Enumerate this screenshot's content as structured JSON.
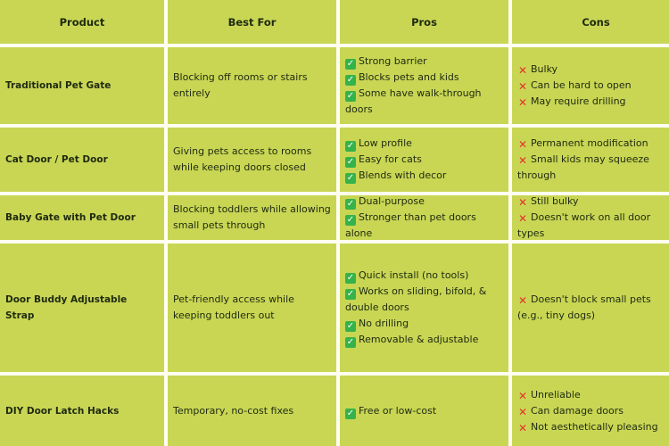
{
  "columns": [
    "Product",
    "Best For",
    "Pros",
    "Cons"
  ],
  "icons": {
    "pro": "check-mark-icon",
    "con": "cross-mark-icon"
  },
  "colors": {
    "cell_bg": "#c9d654",
    "check": "#36b24a",
    "cross": "#e0342a"
  },
  "rows": [
    {
      "product": "Traditional Pet Gate",
      "best_for": "Blocking off rooms or stairs entirely",
      "pros": [
        "Strong barrier",
        "Blocks pets and kids",
        "Some have walk-through doors"
      ],
      "cons": [
        "Bulky",
        "Can be hard to open",
        "May require drilling"
      ]
    },
    {
      "product": "Cat Door / Pet Door",
      "best_for": "Giving pets access to rooms while keeping doors closed",
      "pros": [
        "Low profile",
        "Easy for cats",
        "Blends with decor"
      ],
      "cons": [
        "Permanent modification",
        "Small kids may squeeze through"
      ]
    },
    {
      "product": "Baby Gate with Pet Door",
      "best_for": "Blocking toddlers while allowing small pets through",
      "pros": [
        "Dual-purpose",
        "Stronger than pet doors alone"
      ],
      "cons": [
        "Still bulky",
        "Doesn't work on all door types"
      ]
    },
    {
      "product": "Door Buddy Adjustable Strap",
      "best_for": "Pet-friendly access while keeping toddlers out",
      "pros": [
        "Quick install (no tools)",
        "Works on sliding, bifold, & double doors",
        "No drilling",
        "Removable & adjustable"
      ],
      "cons": [
        "Doesn't block small pets (e.g., tiny dogs)"
      ]
    },
    {
      "product": "DIY Door Latch Hacks",
      "best_for": "Temporary, no-cost fixes",
      "pros": [
        "Free or low-cost"
      ],
      "cons": [
        "Unreliable",
        "Can damage doors",
        "Not aesthetically pleasing"
      ]
    }
  ]
}
